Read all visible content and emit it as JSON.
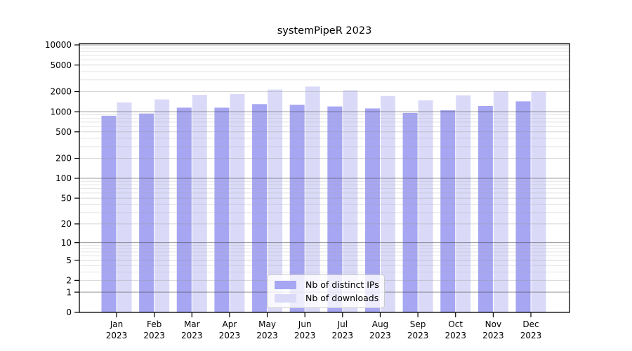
{
  "title": "systemPipeR 2023",
  "colors": {
    "distinct_ips": "#a6a6f2",
    "downloads": "#dadaf8",
    "grid_power10": "#444444",
    "grid_25": "#999999",
    "grid_minor": "#aaaaaa",
    "axis": "#000000",
    "legend_border": "#cccccc"
  },
  "legend": {
    "items": [
      {
        "label": "Nb of distinct IPs",
        "color_key": "distinct_ips"
      },
      {
        "label": "Nb of downloads",
        "color_key": "downloads"
      }
    ]
  },
  "chart_data": {
    "type": "bar",
    "title": "systemPipeR 2023",
    "categories": [
      "Jan 2023",
      "Feb 2023",
      "Mar 2023",
      "Apr 2023",
      "May 2023",
      "Jun 2023",
      "Jul 2023",
      "Aug 2023",
      "Sep 2023",
      "Oct 2023",
      "Nov 2023",
      "Dec 2023"
    ],
    "series": [
      {
        "name": "Nb of distinct IPs",
        "values": [
          870,
          940,
          1150,
          1150,
          1300,
          1270,
          1200,
          1120,
          960,
          1050,
          1220,
          1430
        ]
      },
      {
        "name": "Nb of downloads",
        "values": [
          1380,
          1530,
          1790,
          1840,
          2150,
          2380,
          2100,
          1720,
          1480,
          1760,
          2040,
          2010
        ]
      }
    ],
    "y_scale": "log1p",
    "y_ticks": [
      0,
      1,
      2,
      5,
      10,
      20,
      50,
      100,
      200,
      500,
      1000,
      2000,
      5000,
      10000
    ],
    "ylim": [
      0,
      10000
    ],
    "xlabel": "",
    "ylabel": "",
    "grid": true,
    "minor_grid": true,
    "legend_position": "lower center"
  }
}
